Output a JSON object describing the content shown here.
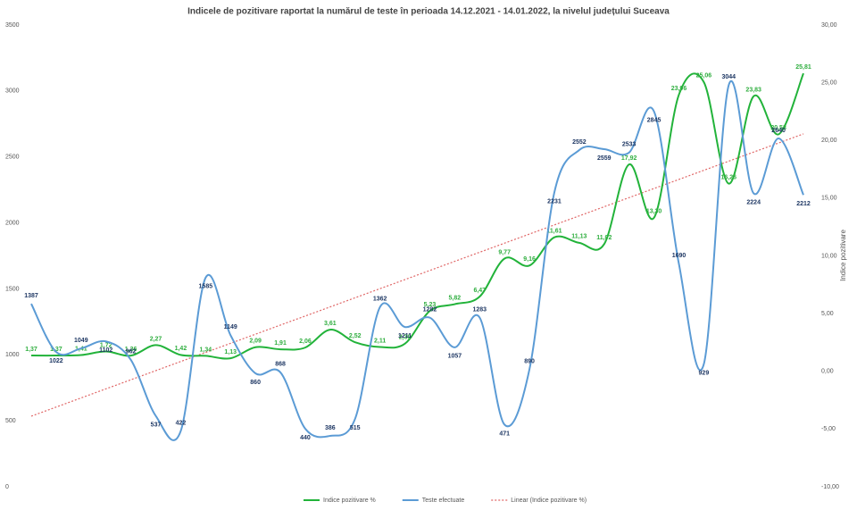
{
  "chart_data": {
    "type": "line",
    "title": "Indicele de pozitivare  raportat la numărul de teste în perioada 14.12.2021 - 14.01.2022, la nivelul județului Suceava",
    "y2label": "Indice pozitivare",
    "ylim": [
      0,
      3500
    ],
    "yticks": [
      0,
      500,
      1000,
      1500,
      2000,
      2500,
      3000,
      3500
    ],
    "y2lim": [
      -10,
      30
    ],
    "y2ticks": [
      {
        "value": -10,
        "label": "-10,00"
      },
      {
        "value": -5,
        "label": "-5,00"
      },
      {
        "value": 0,
        "label": "0,00"
      },
      {
        "value": 5,
        "label": "5,00"
      },
      {
        "value": 10,
        "label": "10,00"
      },
      {
        "value": 15,
        "label": "15,00"
      },
      {
        "value": 20,
        "label": "20,00"
      },
      {
        "value": 25,
        "label": "25,00"
      },
      {
        "value": 30,
        "label": "30,00"
      }
    ],
    "series": [
      {
        "name": "Indice pozitivare %",
        "color": "#22b33a",
        "axis": "y2",
        "values": [
          1.37,
          1.37,
          1.41,
          1.72,
          1.36,
          2.27,
          1.42,
          1.34,
          1.13,
          2.09,
          1.91,
          2.06,
          3.61,
          2.52,
          2.11,
          2.39,
          5.23,
          5.82,
          6.47,
          9.77,
          9.16,
          11.61,
          11.13,
          11.02,
          17.92,
          13.3,
          23.96,
          25.06,
          16.26,
          23.83,
          20.53,
          25.81
        ],
        "value_labels": [
          "1,37",
          "1,37",
          "1,41",
          "1,72",
          "1,36",
          "2,27",
          "1,42",
          "1,34",
          "1,13",
          "2,09",
          "1,91",
          "2,06",
          "3,61",
          "2,52",
          "2,11",
          "2,39",
          "5,23",
          "5,82",
          "6,47",
          "9,77",
          "9,16",
          "11,61",
          "11,13",
          "11,02",
          "17,92",
          "13,30",
          "23,96",
          "25,06",
          "16,26",
          "23,83",
          "20,53",
          "25,81"
        ]
      },
      {
        "name": "Teste efectuate",
        "color": "#5b9bd5",
        "values": [
          1387,
          1022,
          1049,
          1102,
          962,
          537,
          422,
          1585,
          1149,
          860,
          868,
          440,
          386,
          515,
          1362,
          1211,
          1282,
          1057,
          1283,
          471,
          890,
          2231,
          2552,
          2559,
          2533,
          2845,
          1690,
          929,
          3044,
          2224,
          2640,
          2212
        ]
      }
    ],
    "trendline": {
      "name": "Linear (Indice pozitivare %)",
      "color": "#e06666"
    }
  }
}
